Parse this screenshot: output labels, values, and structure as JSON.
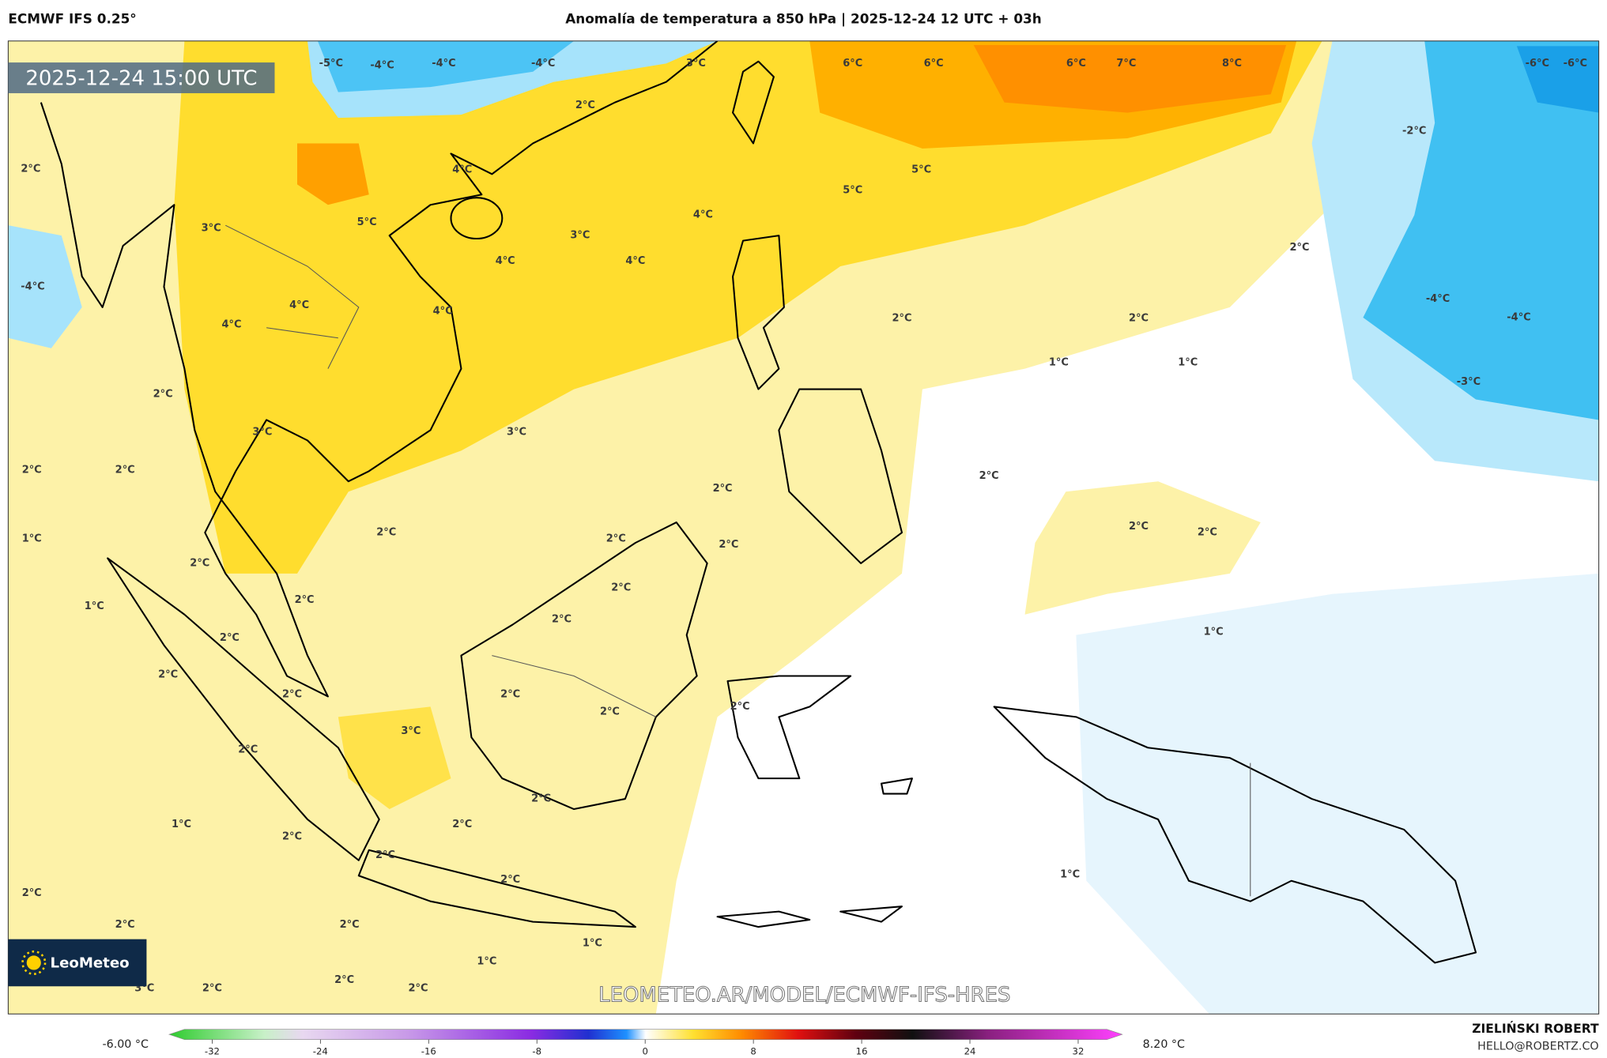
{
  "header": {
    "model": "ECMWF IFS 0.25°",
    "title": "Anomalía de temperatura a 850 hPa | 2025-12-24 12 UTC + 03h"
  },
  "map": {
    "valid_time": "2025-12-24 15:00 UTC",
    "watermark": "LEOMETEO.AR/MODEL/ECMWF-IFS-HRES",
    "logo": "LeoMeteo",
    "labels": [
      "-5°C",
      "-4°C",
      "-4°C",
      "-4°C",
      "3°C",
      "6°C",
      "6°C",
      "6°C",
      "7°C",
      "8°C",
      "-6°C",
      "-6°C",
      "2°C",
      "-2°C",
      "2°C",
      "4°C",
      "5°C",
      "5°C",
      "3°C",
      "5°C",
      "4°C",
      "3°C",
      "2°C",
      "4°C",
      "4°C",
      "-4°C",
      "4°C",
      "4°C",
      "-4°C",
      "-4°C",
      "4°C",
      "2°C",
      "2°C",
      "1°C",
      "1°C",
      "-3°C",
      "2°C",
      "3°C",
      "3°C",
      "2°C",
      "2°C",
      "2°C",
      "2°C",
      "2°C",
      "2°C",
      "1°C",
      "2°C",
      "2°C",
      "2°C",
      "2°C",
      "2°C",
      "2°C",
      "1°C",
      "2°C",
      "1°C",
      "2°C",
      "2°C",
      "2°C",
      "2°C",
      "2°C",
      "2°C",
      "3°C",
      "2°C",
      "2°C",
      "1°C",
      "2°C",
      "2°C",
      "2°C",
      "1°C",
      "2°C",
      "2°C",
      "2°C",
      "2°C",
      "1°C",
      "1°C",
      "2°C",
      "2°C",
      "2°C",
      "3°C"
    ]
  },
  "colorbar": {
    "min_label": "-6.00 °C",
    "max_label": "8.20 °C",
    "ticks": [
      -32,
      -24,
      -16,
      -8,
      0,
      8,
      16,
      24,
      32
    ]
  },
  "footer": {
    "author": "ZIELIŃSKI ROBERT",
    "email": "HELLO@ROBERTZ.CO"
  }
}
